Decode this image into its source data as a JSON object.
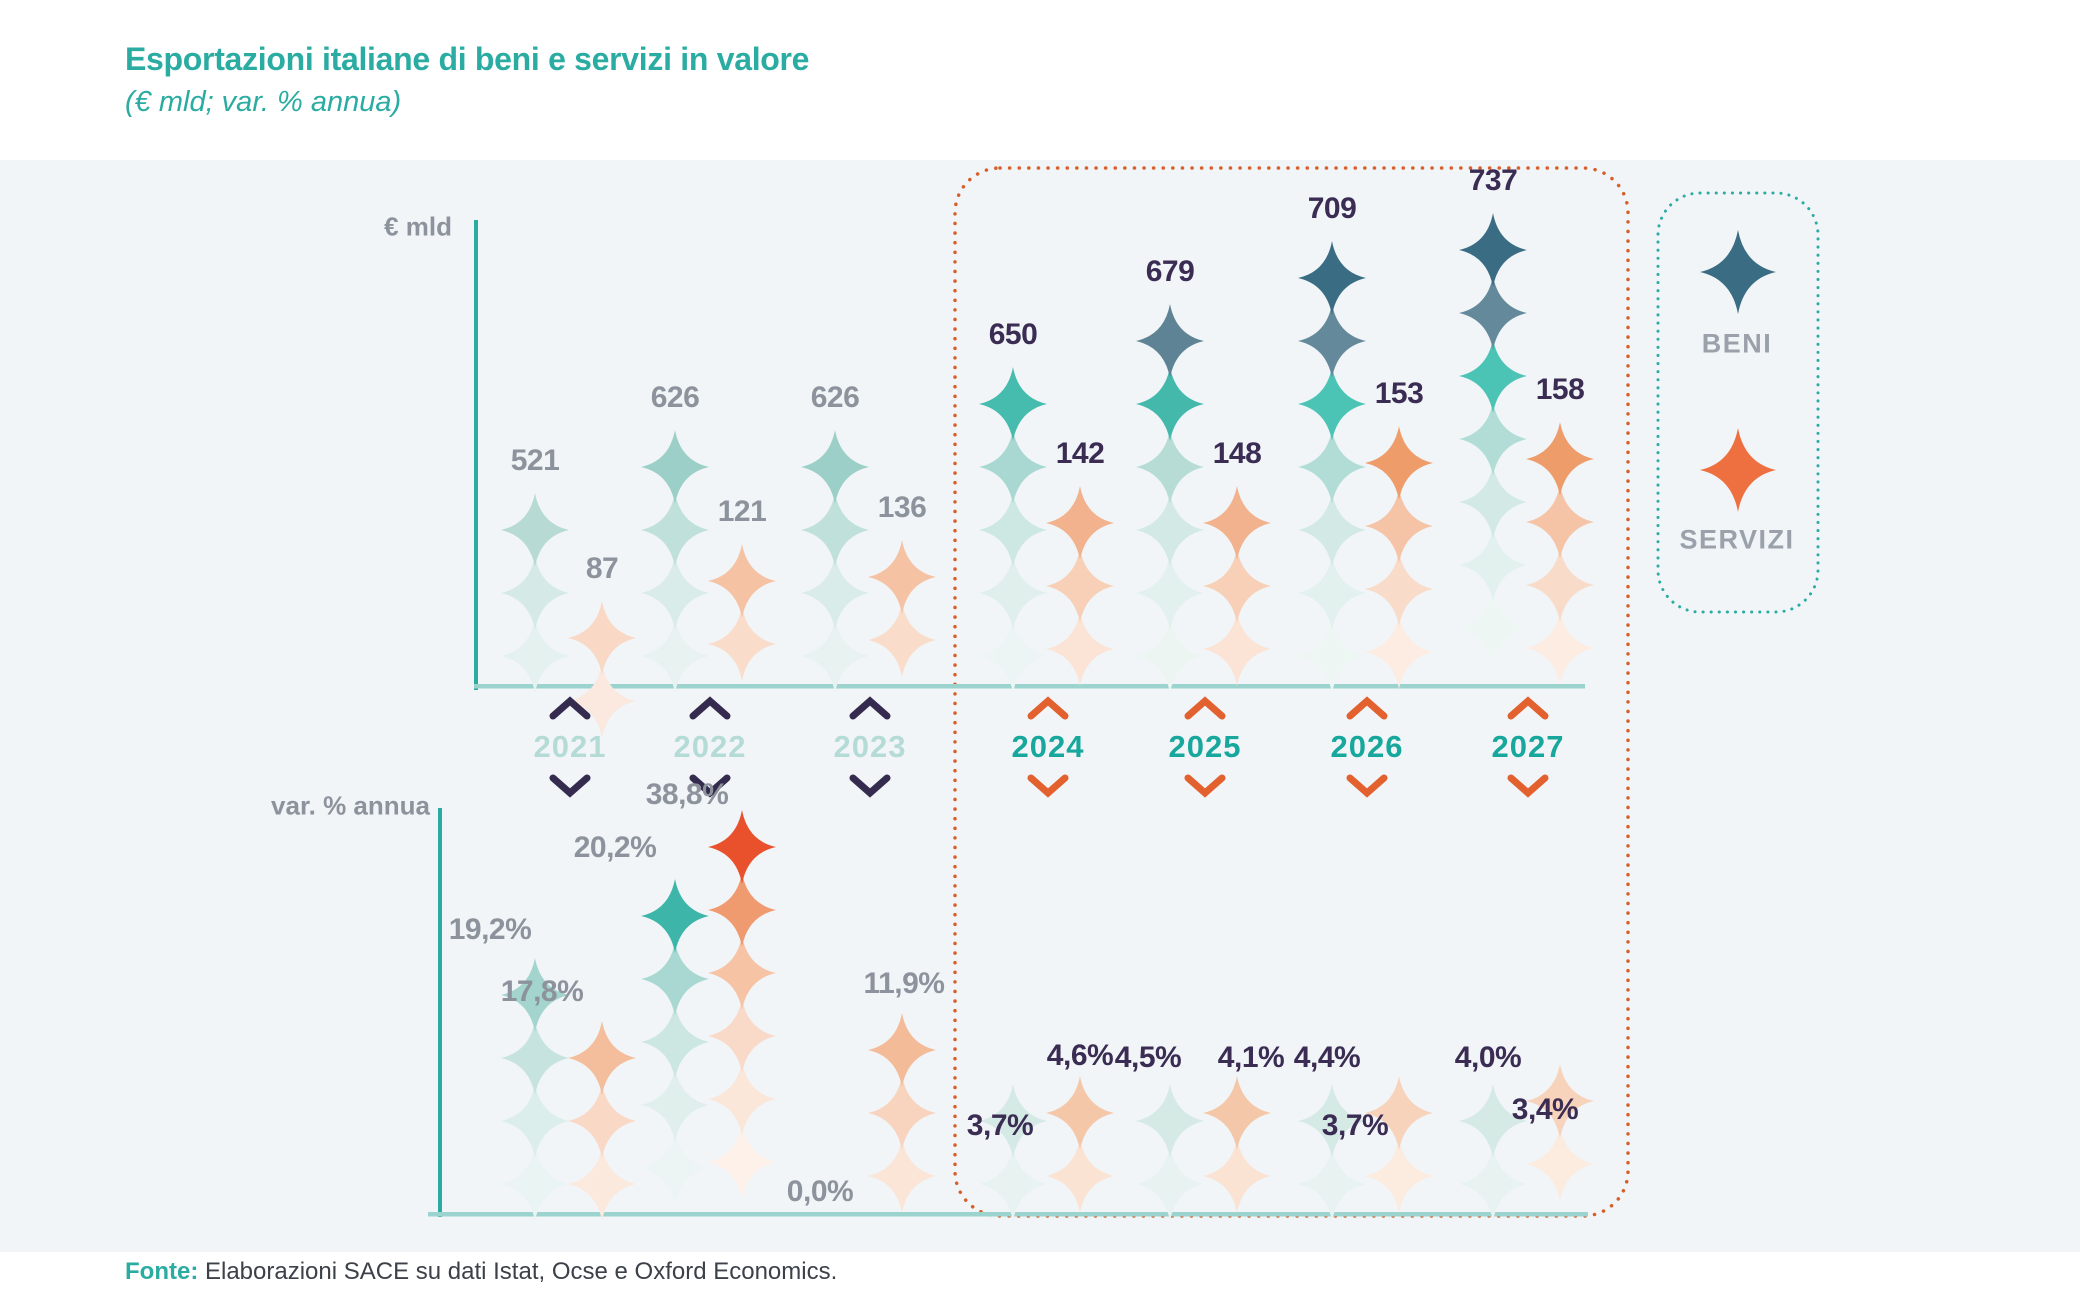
{
  "header": {
    "title": "Esportazioni italiane di beni e servizi in valore",
    "subtitle": "(€ mld; var. % annua)"
  },
  "axes": {
    "top_axis_label": "€ mld",
    "bottom_axis_label": "var. % annua"
  },
  "legend": {
    "items": [
      {
        "label": "BENI",
        "color": "#3A6D84"
      },
      {
        "label": "SERVIZI",
        "color": "#EE7040"
      }
    ]
  },
  "footer": {
    "source_label": "Fonte:",
    "source_text": " Elaborazioni SACE su dati Istat, Ocse e Oxford Economics."
  },
  "colors": {
    "brand_teal": "#2BACA2",
    "axis_vertical": "#2BABA2",
    "axis_horizontal": "#9BD3CE",
    "forecast_border": "#D85F2B",
    "legend_border": "#2BACA2",
    "historical_label": "#8D939C",
    "forecast_label": "#3A2C52",
    "historical_year": "#B5DBD7",
    "forecast_year": "#17A79C",
    "historical_chevron": "#352B4E",
    "forecast_chevron": "#E2612E",
    "panel_background": "#F1F5F8"
  },
  "years": [
    {
      "label": "2021",
      "type": "historical"
    },
    {
      "label": "2022",
      "type": "historical"
    },
    {
      "label": "2023",
      "type": "historical"
    },
    {
      "label": "2024",
      "type": "forecast"
    },
    {
      "label": "2025",
      "type": "forecast"
    },
    {
      "label": "2026",
      "type": "forecast"
    },
    {
      "label": "2027",
      "type": "forecast"
    }
  ],
  "chart_data": [
    {
      "type": "bar",
      "title": "Esportazioni italiane di beni e servizi in valore (€ mld)",
      "ylabel": "€ mld",
      "categories": [
        "2021",
        "2022",
        "2023",
        "2024",
        "2025",
        "2026",
        "2027"
      ],
      "forecast_categories": [
        "2024",
        "2025",
        "2026",
        "2027"
      ],
      "legend_position": "right",
      "grid": false,
      "series": [
        {
          "name": "BENI",
          "values": [
            521,
            626,
            626,
            650,
            679,
            709,
            737
          ],
          "labels": [
            "521",
            "626",
            "626",
            "650",
            "679",
            "709",
            "737"
          ]
        },
        {
          "name": "SERVIZI",
          "values": [
            87,
            121,
            136,
            142,
            148,
            153,
            158
          ],
          "labels": [
            "87",
            "121",
            "136",
            "142",
            "148",
            "153",
            "158"
          ]
        }
      ],
      "stacks": {
        "beni": [
          [
            "#B7DAD4",
            "#D5EAE6",
            "#E5F1EF"
          ],
          [
            "#9BCFC7",
            "#C0E0DB",
            "#D9ECE9",
            "#E8F3F1"
          ],
          [
            "#9BCFC7",
            "#C0E0DB",
            "#D9ECE9",
            "#E8F3F1"
          ],
          [
            "#46BCAE",
            "#A9D8D2",
            "#CDE7E3",
            "#E0EFEC",
            "#ECF5F3"
          ],
          [
            "#5E8395",
            "#44B9AB",
            "#B7DCD6",
            "#D3E9E5",
            "#E3F1EE",
            "#EDF5F3"
          ],
          [
            "#3A6D84",
            "#64899B",
            "#4CC4B5",
            "#B2DDD7",
            "#D2E9E5",
            "#E3F1EE",
            "#EEF6F4"
          ],
          [
            "#3A6D84",
            "#64899B",
            "#4CC4B5",
            "#B2DDD7",
            "#D2E9E5",
            "#E3F1EE",
            "#EEF6F4"
          ]
        ],
        "servizi": [
          [
            "#F9D9C6",
            "#FBE8DE"
          ],
          [
            "#F5C3A3",
            "#F9DCCA"
          ],
          [
            "#F5C3A3",
            "#F9DCCA"
          ],
          [
            "#F2B28D",
            "#F7D0B7",
            "#FBE4D6"
          ],
          [
            "#F2B28D",
            "#F7D0B7",
            "#FBE4D6"
          ],
          [
            "#EF9C6B",
            "#F5C4A6",
            "#F9DBC9",
            "#FCECE2"
          ],
          [
            "#EF9C6B",
            "#F5C4A6",
            "#F9DBC9",
            "#FCECE2"
          ]
        ]
      }
    },
    {
      "type": "bar",
      "title": "Esportazioni italiane di beni e servizi (var. % annua)",
      "ylabel": "var. % annua",
      "categories": [
        "2021",
        "2022",
        "2023",
        "2024",
        "2025",
        "2026",
        "2027"
      ],
      "forecast_categories": [
        "2024",
        "2025",
        "2026",
        "2027"
      ],
      "grid": false,
      "series": [
        {
          "name": "BENI",
          "values": [
            19.2,
            20.2,
            0.0,
            3.7,
            4.5,
            4.4,
            4.0
          ],
          "labels": [
            "19,2%",
            "20,2%",
            "0,0%",
            "3,7%",
            "4,5%",
            "4,4%",
            "4,0%"
          ]
        },
        {
          "name": "SERVIZI",
          "values": [
            17.8,
            38.8,
            11.9,
            4.6,
            4.1,
            3.7,
            3.4
          ],
          "labels": [
            "17,8%",
            "38,8%",
            "11,9%",
            "4,6%",
            "4,1%",
            "3,7%",
            "3,4%"
          ]
        }
      ],
      "stacks": {
        "beni": [
          [
            "#A3D4CD",
            "#C6E3DF",
            "#DCEEEB",
            "#EAF4F2"
          ],
          [
            "#3DB6A9",
            "#A9D8D2",
            "#CCE6E2",
            "#E0EFEC",
            "#ECF5F3"
          ],
          [],
          [
            "#D5E9E5",
            "#E8F3F1"
          ],
          [
            "#D5E9E5",
            "#E8F3F1"
          ],
          [
            "#D5E9E5",
            "#E8F3F1"
          ],
          [
            "#D5E9E5",
            "#E8F3F1"
          ]
        ],
        "servizi": [
          [
            "#F4BD9B",
            "#F9D8C5",
            "#FCE9DD"
          ],
          [
            "#E8512B",
            "#F09A70",
            "#F6C3A4",
            "#F9D9C7",
            "#FBE7DA",
            "#FDF1E9"
          ],
          [
            "#F3BB97",
            "#F8D3BD",
            "#FBE5D7"
          ],
          [
            "#F5C7A9",
            "#FBE3D4"
          ],
          [
            "#F5C7A9",
            "#FBE3D4"
          ],
          [
            "#F7D3BB",
            "#FCEBDF"
          ],
          [
            "#F7D3BB",
            "#FCEBDF"
          ]
        ]
      }
    }
  ]
}
